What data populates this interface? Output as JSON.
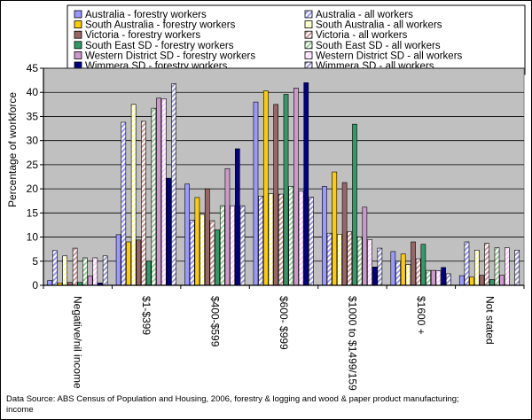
{
  "chart_data": {
    "type": "bar",
    "ylabel": "Percentage of workforce",
    "xlabel": "",
    "ylim": [
      0,
      45
    ],
    "yticks": [
      0,
      5,
      10,
      15,
      20,
      25,
      30,
      35,
      40,
      45
    ],
    "grid": true,
    "legend_position": "top",
    "categories": [
      "Negative/nil income",
      "$1-$399",
      "$400-$599",
      "$600- $999",
      "$1000 to $1499/1599",
      "$1600 +",
      "Not stated"
    ],
    "series": [
      {
        "name": "Australia - forestry workers",
        "color": "#9999ff",
        "pattern": "solid",
        "values": [
          1,
          10.5,
          21,
          38,
          20.5,
          7,
          2
        ]
      },
      {
        "name": "Australia - all workers",
        "color": "#9999ff",
        "pattern": "hatch",
        "values": [
          7.2,
          33.8,
          13.5,
          18.5,
          10.8,
          5,
          9
        ]
      },
      {
        "name": "South Australia - forestry workers",
        "color": "#ffcc00",
        "pattern": "solid",
        "values": [
          0.5,
          9,
          18.2,
          40.3,
          23.5,
          6.5,
          1.7
        ]
      },
      {
        "name": "South Australia - all workers",
        "color": "#ffff99",
        "pattern": "hatch",
        "values": [
          6.1,
          37.5,
          14.7,
          19,
          10.6,
          4.3,
          7.3
        ]
      },
      {
        "name": "Victoria - forestry workers",
        "color": "#996666",
        "pattern": "solid",
        "values": [
          0.6,
          9.4,
          20,
          37.5,
          21.3,
          9,
          2.1
        ]
      },
      {
        "name": "Victoria - all workers",
        "color": "#cc9999",
        "pattern": "hatch",
        "values": [
          7.7,
          34,
          13.4,
          18.9,
          11.1,
          5.5,
          8.7
        ]
      },
      {
        "name": "South East SD - forestry workers",
        "color": "#339966",
        "pattern": "solid",
        "values": [
          0.6,
          5,
          11.5,
          39.6,
          33.4,
          8.5,
          1.2
        ]
      },
      {
        "name": "South East SD - all workers",
        "color": "#99cc99",
        "pattern": "hatch",
        "values": [
          5.7,
          36.7,
          16.5,
          20.5,
          10,
          3.1,
          7.8
        ]
      },
      {
        "name": "Western District SD - forestry workers",
        "color": "#cc99cc",
        "pattern": "solid",
        "values": [
          1.9,
          38.8,
          24.2,
          40.9,
          16.2,
          3.1,
          2.1
        ]
      },
      {
        "name": "Western District SD - all workers",
        "color": "#ffccff",
        "pattern": "hatch",
        "values": [
          5.7,
          38.7,
          16.5,
          19.5,
          9.5,
          3,
          7.8
        ]
      },
      {
        "name": "Wimmera SD - forestry workers",
        "color": "#000080",
        "pattern": "solid",
        "values": [
          0.5,
          22.2,
          28.3,
          42,
          3.8,
          3.7,
          0
        ]
      },
      {
        "name": "Wimmera SD - all workers",
        "color": "#9999cc",
        "pattern": "hatch",
        "values": [
          6.1,
          41.8,
          16.5,
          18.3,
          7.7,
          2.4,
          7.3
        ]
      }
    ]
  },
  "source_note": "Data Source: ABS Census of Population and Housing, 2006, forestry & logging and wood & paper product manufacturing; income"
}
